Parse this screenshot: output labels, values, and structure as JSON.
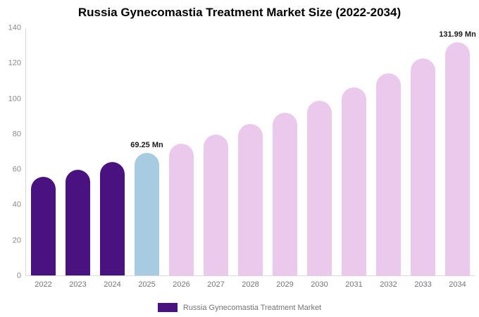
{
  "chart_data": {
    "type": "bar",
    "title": "Russia Gynecomastia Treatment Market Size (2022-2034)",
    "xlabel": "",
    "ylabel": "",
    "unit": "Mn",
    "categories": [
      "2022",
      "2023",
      "2024",
      "2025",
      "2026",
      "2027",
      "2028",
      "2029",
      "2030",
      "2031",
      "2032",
      "2033",
      "2034"
    ],
    "values": [
      55.8,
      60.0,
      64.4,
      69.25,
      74.4,
      79.9,
      85.9,
      92.3,
      99.1,
      106.5,
      114.4,
      122.9,
      131.99
    ],
    "ylim": [
      0,
      140
    ],
    "yticks": [
      0,
      20,
      40,
      60,
      80,
      100,
      120,
      140
    ],
    "grid": false,
    "bar_colors": [
      "#4A1180",
      "#4A1180",
      "#4A1180",
      "#A7CCE2",
      "#EBC9ED",
      "#EBC9ED",
      "#EBC9ED",
      "#EBC9ED",
      "#EBC9ED",
      "#EBC9ED",
      "#EBC9ED",
      "#EBC9ED",
      "#EBC9ED"
    ],
    "annotations": [
      {
        "index": 3,
        "text": "69.25 Mn"
      },
      {
        "index": 12,
        "text": "131.99 Mn"
      }
    ],
    "legend": {
      "label": "Russia Gynecomastia Treatment Market",
      "position": "bottom",
      "swatch_color": "#4A1180"
    },
    "colors": {
      "historical_bar": "#4A1180",
      "current_year_bar": "#A7CCE2",
      "forecast_bar": "#EBC9ED",
      "axis_text": "#8a8a8a",
      "axis_line": "#d9d9d9",
      "title_text": "#000000"
    }
  }
}
